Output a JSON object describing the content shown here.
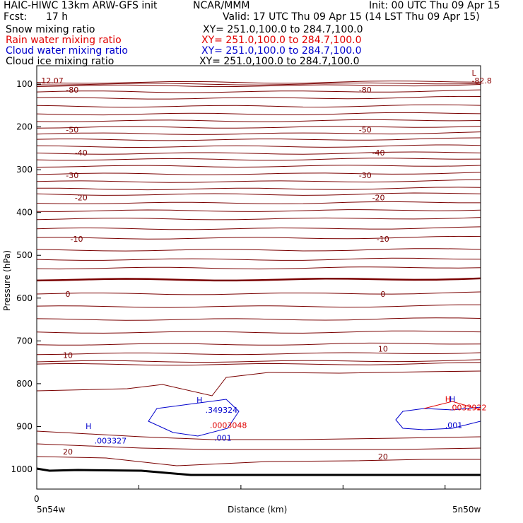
{
  "header": {
    "title": "HAIC-HIWC 13km ARW-GFS init",
    "org": "NCAR/MMM",
    "init": "Init: 00 UTC Thu 09 Apr 15",
    "fcst_label": "Fcst:",
    "fcst_value": "17 h",
    "valid": "Valid: 17 UTC Thu 09 Apr 15 (14 LST Thu 09 Apr 15)"
  },
  "fields": [
    {
      "name": "Snow mixing ratio",
      "xy": "XY= 251.0,100.0 to 284.7,100.0",
      "color": "#000000"
    },
    {
      "name": "Rain water mixing ratio",
      "xy": "XY= 251.0,100.0 to 284.7,100.0",
      "color": "#e00000"
    },
    {
      "name": "Cloud water mixing ratio",
      "xy": "XY= 251.0,100.0 to 284.7,100.0",
      "color": "#0000cc"
    },
    {
      "name": "Cloud ice mixing ratio",
      "xy": "XY= 251.0,100.0 to 284.7,100.0",
      "color": "#000000"
    }
  ],
  "chart_data": {
    "type": "line",
    "xlabel": "Distance (km)",
    "ylabel": "Pressure (hPa)",
    "x_ticks": [
      "0"
    ],
    "x_end_labels": [
      "5n54w",
      "5n50w"
    ],
    "y_ticks": [
      100,
      200,
      300,
      400,
      500,
      600,
      700,
      800,
      900,
      1000
    ],
    "ylim": [
      1050,
      50
    ],
    "temperature_contour_labels": [
      {
        "value": "-80",
        "x": 8,
        "p": 120
      },
      {
        "value": "-80",
        "x": 74,
        "p": 120
      },
      {
        "value": "-50",
        "x": 8,
        "p": 213
      },
      {
        "value": "-50",
        "x": 74,
        "p": 213
      },
      {
        "value": "-40",
        "x": 10,
        "p": 267
      },
      {
        "value": "-40",
        "x": 77,
        "p": 267
      },
      {
        "value": "-30",
        "x": 8,
        "p": 320
      },
      {
        "value": "-30",
        "x": 74,
        "p": 320
      },
      {
        "value": "-20",
        "x": 10,
        "p": 372
      },
      {
        "value": "-20",
        "x": 77,
        "p": 372
      },
      {
        "value": "-10",
        "x": 9,
        "p": 468
      },
      {
        "value": "-10",
        "x": 78,
        "p": 468
      },
      {
        "value": "0",
        "x": 7,
        "p": 597
      },
      {
        "value": "0",
        "x": 78,
        "p": 597
      },
      {
        "value": "10",
        "x": 7,
        "p": 740
      },
      {
        "value": "10",
        "x": 78,
        "p": 725
      },
      {
        "value": "20",
        "x": 7,
        "p": 965
      },
      {
        "value": "20",
        "x": 78,
        "p": 977
      }
    ],
    "extrema_labels": [
      {
        "text": "L",
        "color": "#8b0000",
        "x": 98,
        "p": 80
      },
      {
        "text": "-82.8",
        "color": "#8b0000",
        "x": 98,
        "p": 98
      },
      {
        "text": "H",
        "color": "#0000cc",
        "x": 11,
        "p": 906
      },
      {
        "text": ".003327",
        "color": "#0000cc",
        "x": 13,
        "p": 940
      },
      {
        "text": "H",
        "color": "#0000cc",
        "x": 36,
        "p": 845
      },
      {
        "text": ".349324",
        "color": "#0000cc",
        "x": 38,
        "p": 868
      },
      {
        "text": ".0003048",
        "color": "#e00000",
        "x": 39,
        "p": 903
      },
      {
        "text": ".001",
        "color": "#0000cc",
        "x": 40,
        "p": 933
      },
      {
        "text": "H",
        "color": "#e00000",
        "x": 92,
        "p": 842
      },
      {
        "text": "H",
        "color": "#0000cc",
        "x": 93,
        "p": 842
      },
      {
        "text": ".0032922",
        "color": "#e00000",
        "x": 93,
        "p": 862
      },
      {
        "text": ".001",
        "color": "#0000cc",
        "x": 92,
        "p": 903
      },
      {
        "text": "12.07",
        "color": "#8b0000",
        "x": 1,
        "p": 98
      }
    ],
    "colors": {
      "temperature": "#7a0000",
      "terrain": "#000000",
      "cloud_water": "#0000cc",
      "rain": "#e00000"
    }
  }
}
